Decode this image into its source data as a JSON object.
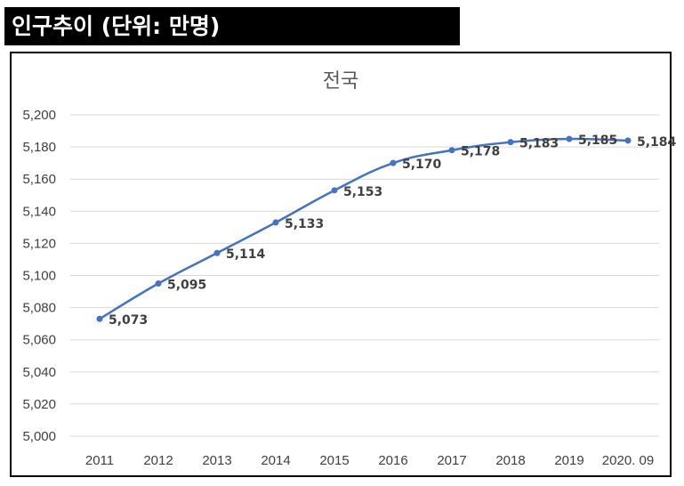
{
  "header": {
    "title": "인구추이 (단위: 만명)"
  },
  "colors": {
    "line": "#4472C4",
    "grid": "#D9D9D9",
    "header_bg": "#000000"
  },
  "chart_data": {
    "type": "line",
    "title": "전국",
    "xlabel": "",
    "ylabel": "",
    "categories": [
      "2011",
      "2012",
      "2013",
      "2014",
      "2015",
      "2016",
      "2017",
      "2018",
      "2019",
      "2020. 09"
    ],
    "series": [
      {
        "values": [
          5073,
          5095,
          5114,
          5133,
          5153,
          5170,
          5178,
          5183,
          5185,
          5184
        ],
        "labels": [
          "5,073",
          "5,095",
          "5,114",
          "5,133",
          "5,153",
          "5,170",
          "5,178",
          "5,183",
          "5,185",
          "5,184"
        ]
      }
    ],
    "ylim": [
      5000,
      5200
    ],
    "yticks": [
      5000,
      5020,
      5040,
      5060,
      5080,
      5100,
      5120,
      5140,
      5160,
      5180,
      5200
    ],
    "ytick_labels": [
      "5,000",
      "5,020",
      "5,040",
      "5,060",
      "5,080",
      "5,100",
      "5,120",
      "5,140",
      "5,160",
      "5,180",
      "5,200"
    ],
    "grid": true,
    "legend": "none"
  }
}
